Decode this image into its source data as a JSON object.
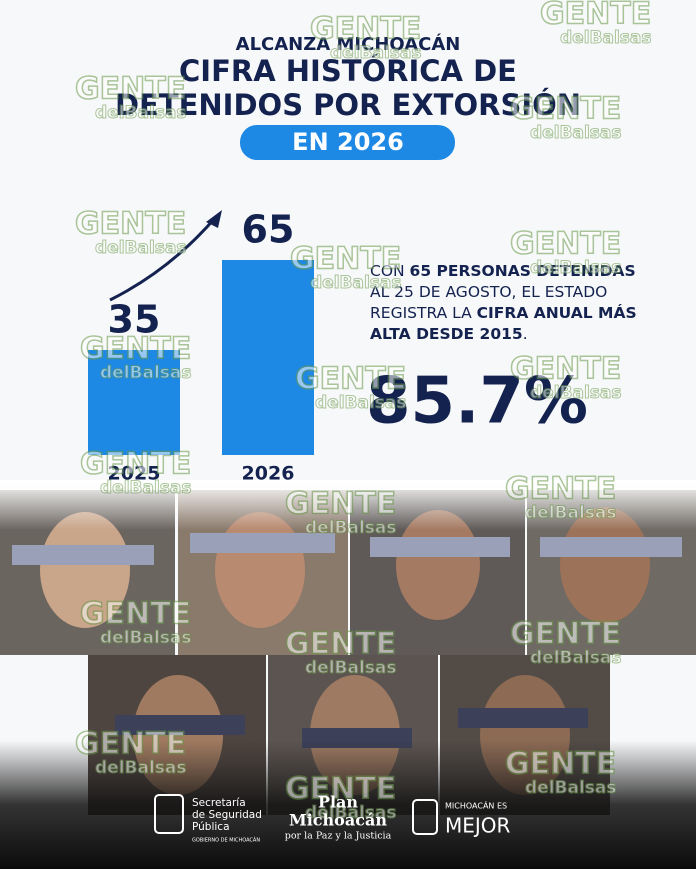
{
  "header": {
    "kicker": "ALCANZA MICHOACÁN",
    "title_lines": [
      "CIFRA HISTÓRICA DE",
      "DETENIDOS POR EXTORSIÓN"
    ],
    "badge": "EN 2026"
  },
  "chart_data": {
    "type": "bar",
    "categories": [
      "2025",
      "2026"
    ],
    "values": [
      35,
      65
    ],
    "color": "#1e88e5"
  },
  "summary": {
    "lines": [
      [
        {
          "text": "CON ",
          "bold": false
        },
        {
          "text": "65 PERSONAS DETENIDAS",
          "bold": true
        }
      ],
      [
        {
          "text": "AL 25 DE AGOSTO, EL ESTADO",
          "bold": false
        }
      ],
      [
        {
          "text": "REGISTRA LA ",
          "bold": false
        },
        {
          "text": "CIFRA ANUAL MÁS",
          "bold": true
        }
      ],
      [
        {
          "text": "ALTA DESDE 2015",
          "bold": true
        },
        {
          "text": ".",
          "bold": false
        }
      ]
    ],
    "percent": "85.7%"
  },
  "watermark": {
    "brand": "GENTE",
    "sub": "delBalsas"
  },
  "footer": {
    "ssp": [
      "Secretaría",
      "de Seguridad",
      "Pública"
    ],
    "ssp_gov": "GOBIERNO DE MICHOACÁN",
    "plan": [
      "Plan",
      "Michoacán"
    ],
    "plan_sub": "por la Paz y la Justicia",
    "mej_top": "MICHOACÁN ES",
    "mej": "MEJOR"
  }
}
